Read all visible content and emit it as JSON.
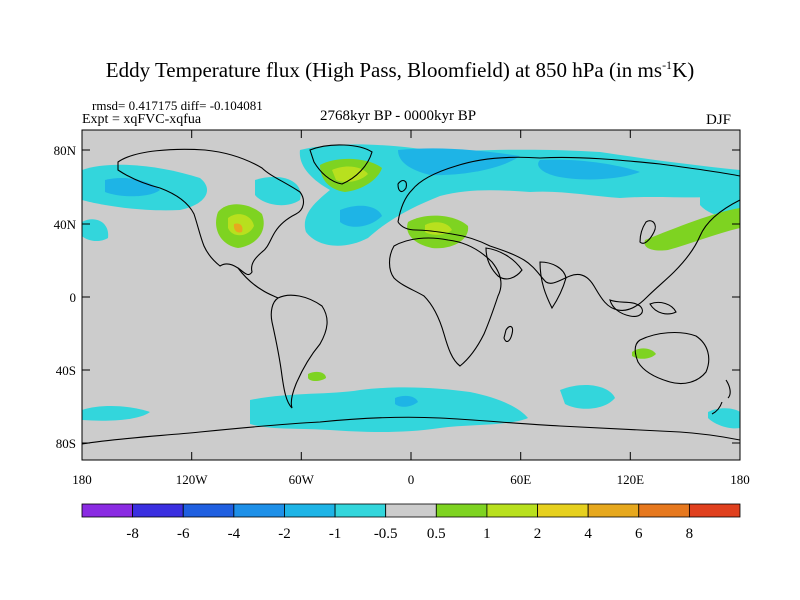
{
  "title": {
    "main": "Eddy Temperature flux (High Pass, Bloomfield) at 850 hPa (in ms",
    "sup": "-1",
    "end": "K)"
  },
  "stats": "rmsd= 0.417175 diff= -0.104081",
  "expt": "Expt = xqFVC-xqfua",
  "period": "2768kyr BP - 0000kyr BP",
  "season": "DJF",
  "lat_ticks": [
    "80N",
    "40N",
    "0",
    "40S",
    "80S"
  ],
  "lon_ticks": [
    "180",
    "120W",
    "60W",
    "0",
    "60E",
    "120E",
    "180"
  ],
  "colorbar": {
    "labels": [
      "-8",
      "-6",
      "-4",
      "-2",
      "-1",
      "-0.5",
      "0.5",
      "1",
      "2",
      "4",
      "6",
      "8"
    ],
    "colors": [
      "#8a2be2",
      "#3a2fe0",
      "#1f5fe0",
      "#1e90e8",
      "#1eb4e6",
      "#33d6dc",
      "#cccccc",
      "#7ed321",
      "#b8e01e",
      "#e6d01e",
      "#e6a81e",
      "#e6781e",
      "#e0401e"
    ]
  },
  "colors": {
    "land_fill": "#cccccc",
    "neg_weak": "#33d6dc",
    "neg_mid": "#1eb4e6",
    "neg_strong": "#1e90e8",
    "pos_weak": "#7ed321",
    "pos_mid": "#b8e01e",
    "pos_strong": "#e6a81e"
  }
}
